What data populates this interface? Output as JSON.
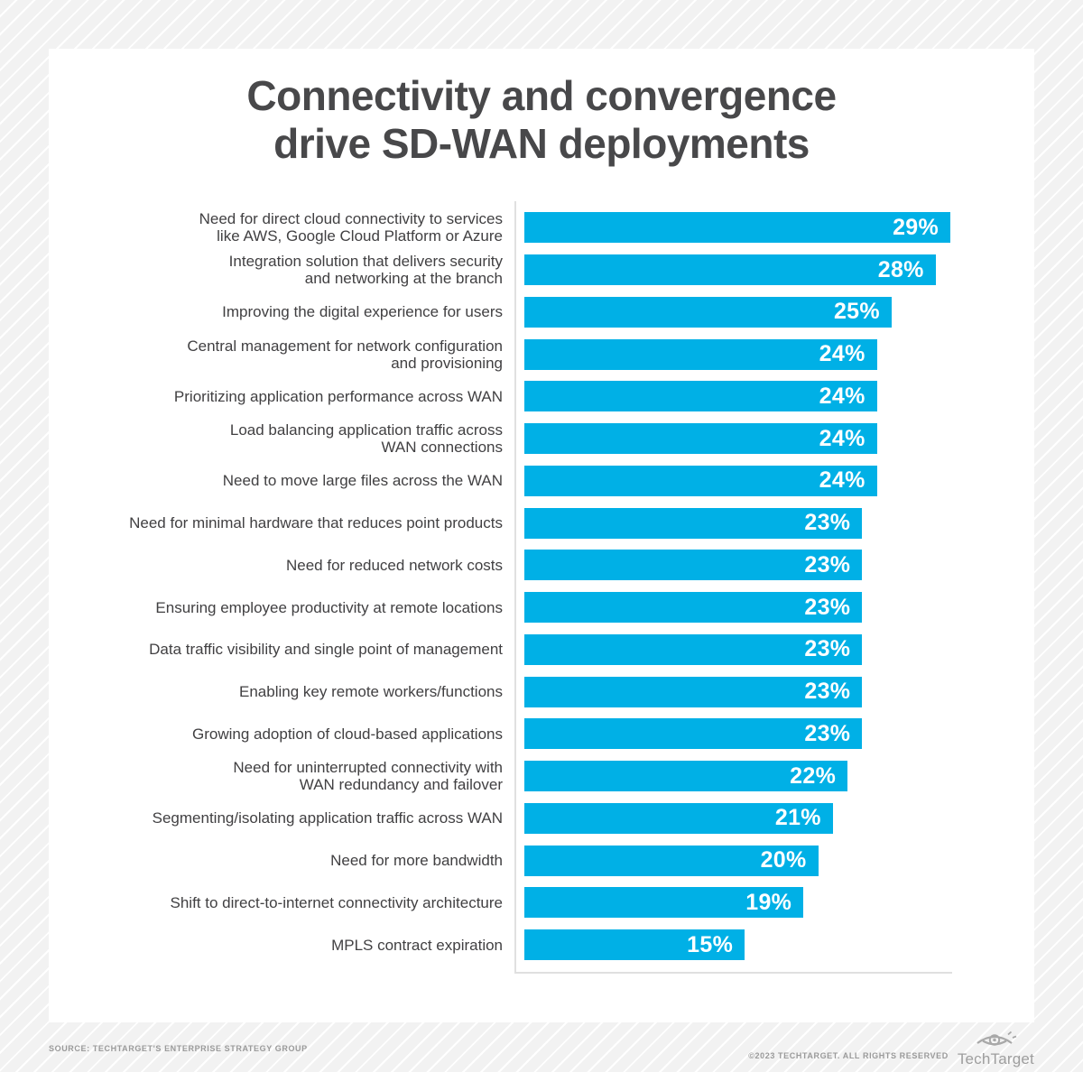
{
  "title": {
    "text": "Connectivity and convergence\ndrive SD-WAN deployments"
  },
  "chart_data": {
    "type": "bar",
    "orientation": "horizontal",
    "title": "Connectivity and convergence drive SD-WAN deployments",
    "value_suffix": "%",
    "xlim": [
      0,
      29
    ],
    "bar_color": "#00b0e6",
    "legend": "none",
    "grid": false,
    "categories": [
      "Need for direct cloud connectivity to services\nlike AWS, Google Cloud Platform or Azure",
      "Integration solution that delivers security\nand networking at the branch",
      "Improving the digital experience for users",
      "Central management for network configuration\nand provisioning",
      "Prioritizing application performance across WAN",
      "Load balancing application traffic across\nWAN connections",
      "Need to move large files across the WAN",
      "Need for minimal hardware that reduces point products",
      "Need for reduced network costs",
      "Ensuring employee productivity at remote locations",
      "Data traffic visibility and single point of management",
      "Enabling key remote workers/functions",
      "Growing adoption of cloud-based applications",
      "Need for uninterrupted connectivity with\nWAN redundancy and failover",
      "Segmenting/isolating application traffic across WAN",
      "Need for more bandwidth",
      "Shift to direct-to-internet connectivity architecture",
      "MPLS contract expiration"
    ],
    "values": [
      29,
      28,
      25,
      24,
      24,
      24,
      24,
      23,
      23,
      23,
      23,
      23,
      23,
      22,
      21,
      20,
      19,
      15
    ]
  },
  "footer": {
    "source": "SOURCE: TECHTARGET'S ENTERPRISE STRATEGY GROUP",
    "copyright": "©2023 TECHTARGET. ALL RIGHTS RESERVED",
    "logo_text": "TechTarget"
  },
  "colors": {
    "bar": "#00b0e6",
    "title_text": "#48484a",
    "label_text": "#414042",
    "axis_line": "#e0e0e0",
    "background_stripe": "#f2f2f2"
  }
}
